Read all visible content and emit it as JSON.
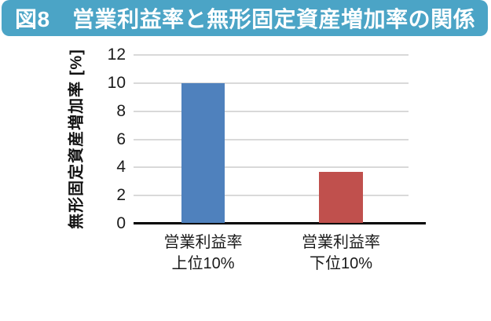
{
  "header": {
    "title": "図8　営業利益率と無形固定資産増加率の関係",
    "bg_color": "#4BA4C6",
    "text_color": "#FFFFFF"
  },
  "chart_data": {
    "type": "bar",
    "title": "",
    "categories": [
      "営業利益率 上位10%",
      "営業利益率 下位10%"
    ],
    "category_lines": [
      [
        "営業利益率",
        "上位10%"
      ],
      [
        "営業利益率",
        "下位10%"
      ]
    ],
    "values": [
      10,
      3.7
    ],
    "bar_colors": [
      "#4F81BD",
      "#C0504D"
    ],
    "bar_names": [
      "bar-operating-margin-top10",
      "bar-operating-margin-bottom10"
    ],
    "xlabel": "",
    "ylabel": "無形固定資産増加率 [%]",
    "yticks": [
      0,
      2,
      4,
      6,
      8,
      10,
      12
    ],
    "ylim": [
      0,
      12
    ],
    "grid": true,
    "gridline_color": "#D9D9D9",
    "axis_color": "#000000",
    "legend": "none"
  }
}
